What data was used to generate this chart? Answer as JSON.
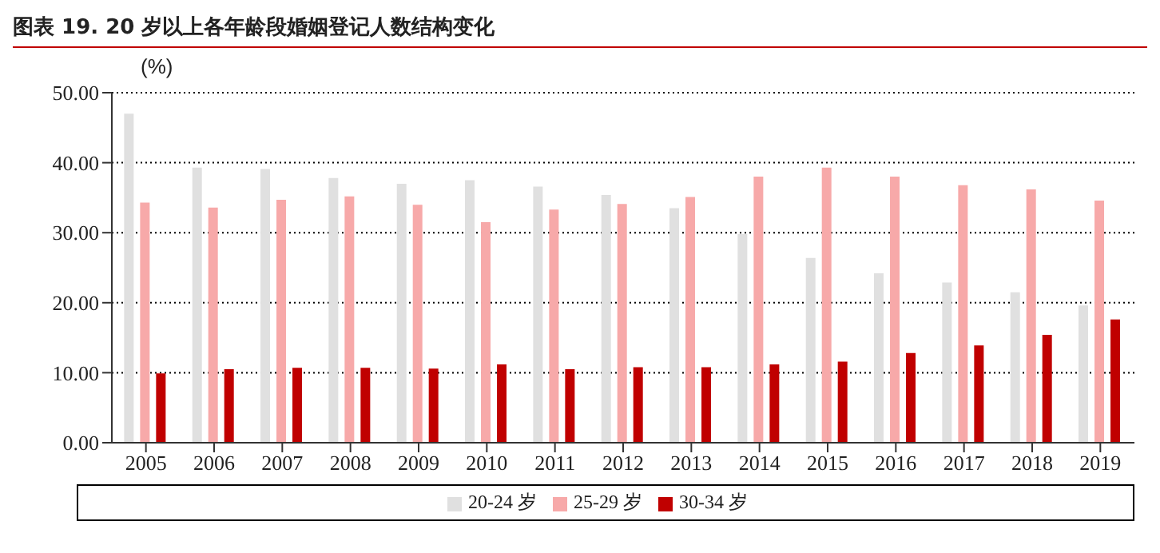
{
  "chart_data": {
    "type": "bar",
    "title": "图表 19. 20 岁以上各年龄段婚姻登记人数结构变化",
    "ylabel": "(%)",
    "categories": [
      "2005",
      "2006",
      "2007",
      "2008",
      "2009",
      "2010",
      "2011",
      "2012",
      "2013",
      "2014",
      "2015",
      "2016",
      "2017",
      "2018",
      "2019"
    ],
    "series": [
      {
        "name": "20-24 岁",
        "color": "#e0e0e0",
        "values": [
          47.0,
          39.3,
          39.1,
          37.8,
          37.0,
          37.5,
          36.6,
          35.4,
          33.5,
          29.8,
          26.4,
          24.2,
          22.9,
          21.5,
          19.6
        ]
      },
      {
        "name": "25-29 岁",
        "color": "#f7a9a9",
        "values": [
          34.3,
          33.6,
          34.7,
          35.2,
          34.0,
          31.5,
          33.3,
          34.1,
          35.1,
          38.0,
          39.3,
          38.0,
          36.8,
          36.2,
          34.6
        ]
      },
      {
        "name": "30-34 岁",
        "color": "#c00000",
        "values": [
          9.9,
          10.5,
          10.7,
          10.7,
          10.6,
          11.2,
          10.5,
          10.8,
          10.8,
          11.2,
          11.6,
          12.8,
          13.9,
          15.4,
          17.6
        ]
      }
    ],
    "ylim": [
      0,
      50
    ],
    "yticks": [
      {
        "value": 0,
        "label": "0.00"
      },
      {
        "value": 10,
        "label": "10.00"
      },
      {
        "value": 20,
        "label": "20.00"
      },
      {
        "value": 30,
        "label": "30.00"
      },
      {
        "value": 40,
        "label": "40.00"
      },
      {
        "value": 50,
        "label": "50.00"
      }
    ],
    "grid": "y",
    "legend": "bottom"
  }
}
